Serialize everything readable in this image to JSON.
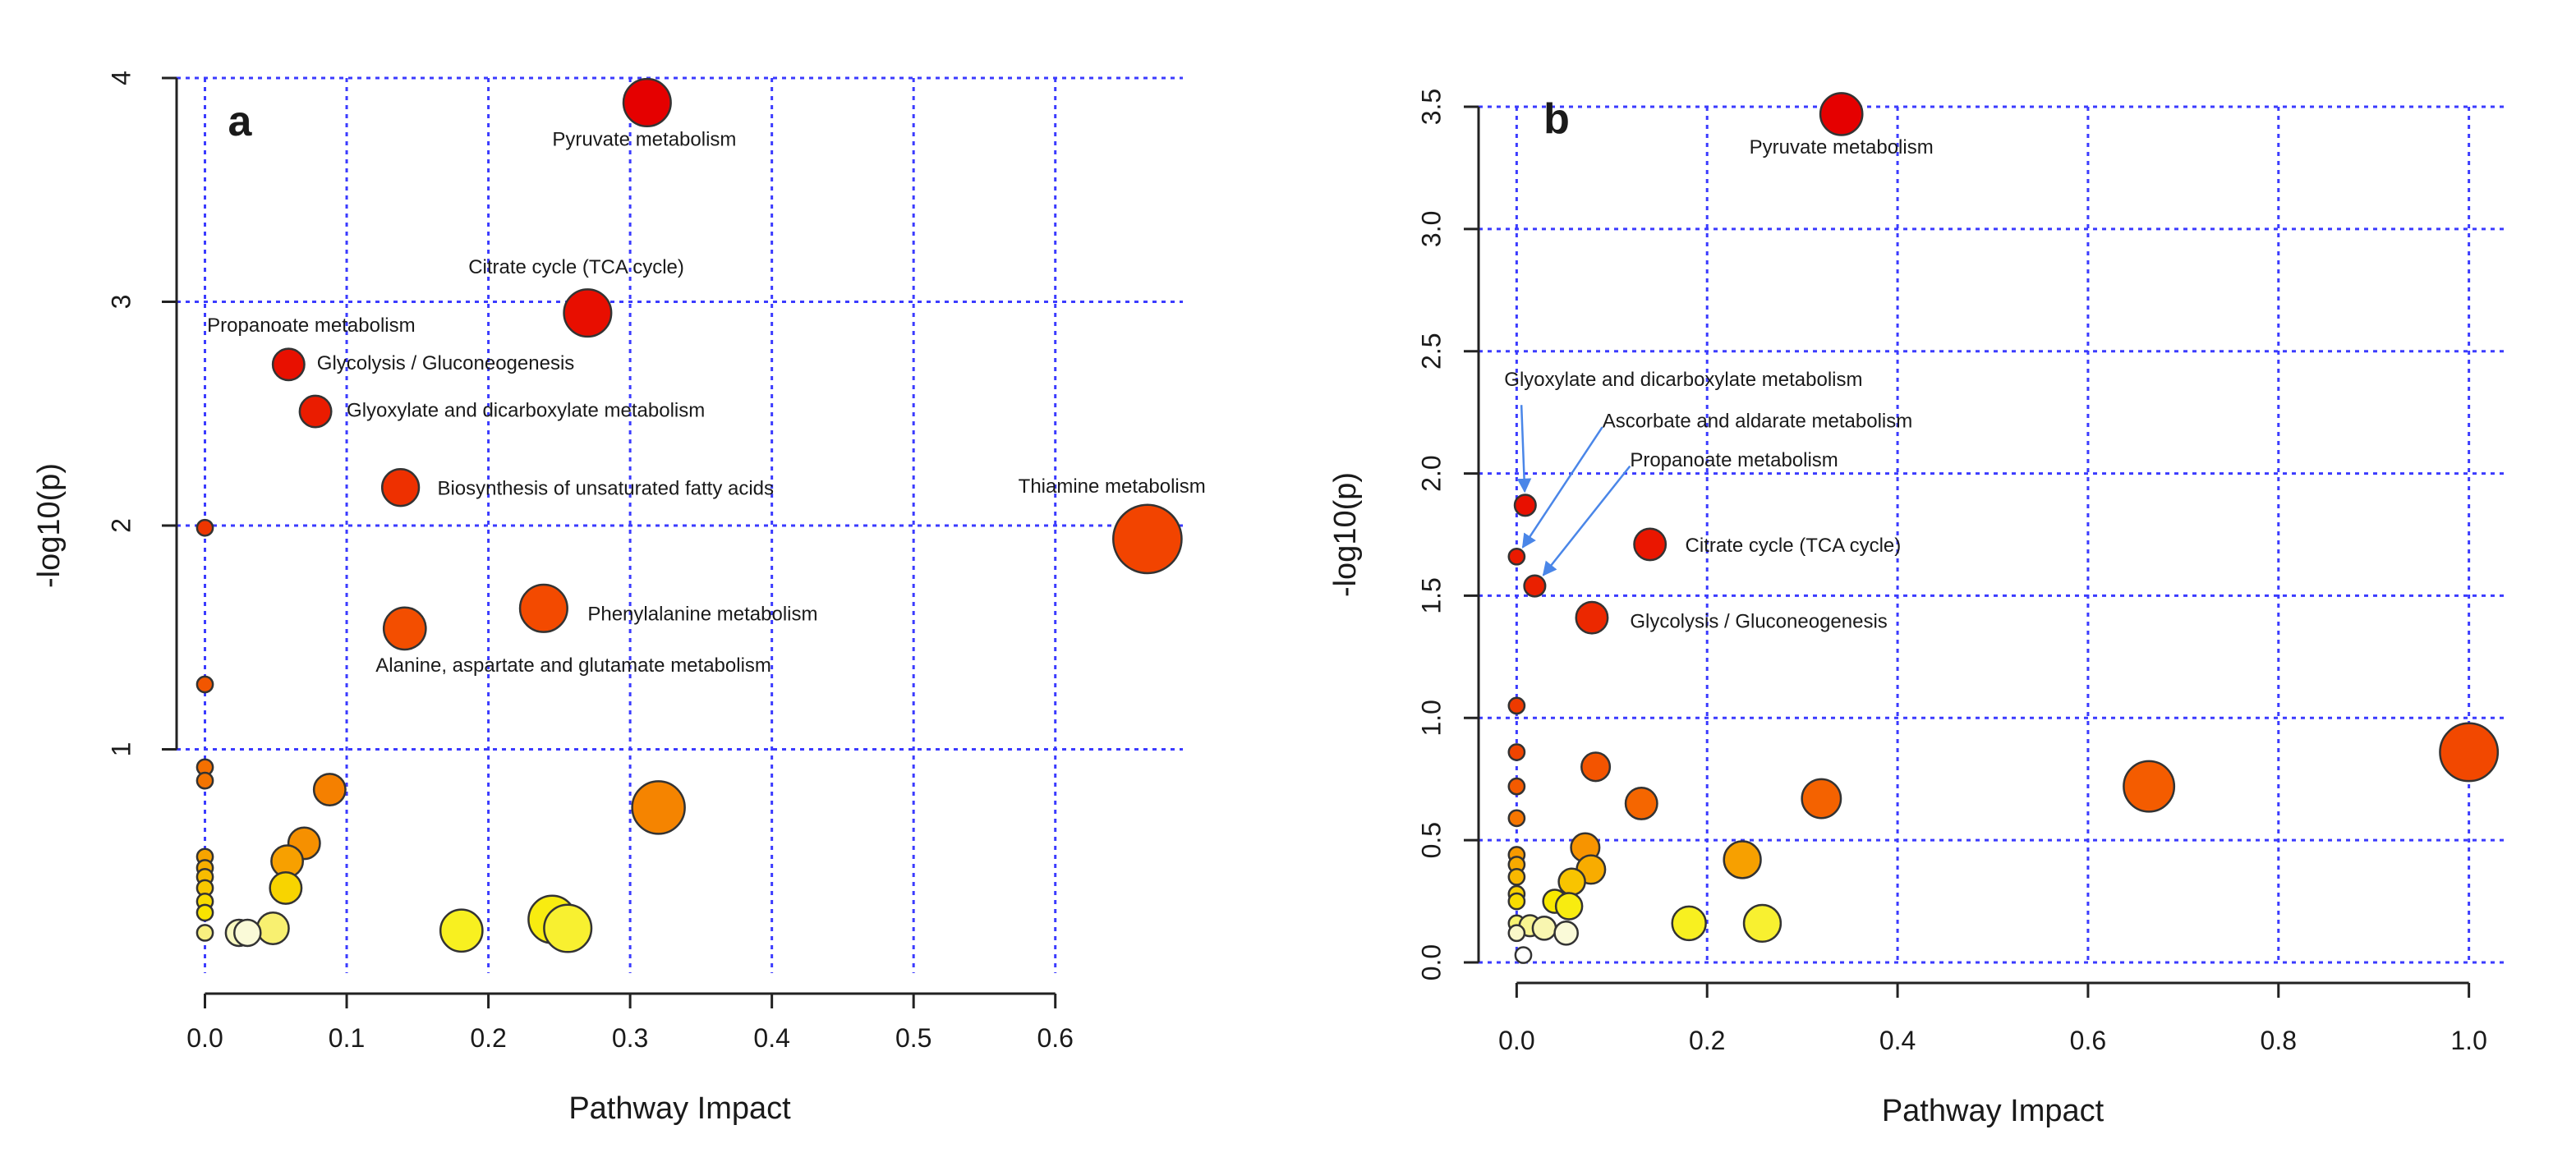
{
  "chart_data": [
    {
      "type": "scatter",
      "panel_label": "a",
      "xlabel": "Pathway Impact",
      "ylabel": "-log10(p)",
      "xlim": [
        -0.02,
        0.69
      ],
      "ylim": [
        0,
        4
      ],
      "x_ticks": [
        0.0,
        0.1,
        0.2,
        0.3,
        0.4,
        0.5,
        0.6
      ],
      "x_tick_labels": [
        "0.0",
        "0.1",
        "0.2",
        "0.3",
        "0.4",
        "0.5",
        "0.6"
      ],
      "y_ticks": [
        1,
        2,
        3,
        4
      ],
      "y_tick_labels": [
        "1",
        "2",
        "3",
        "4"
      ],
      "grid": true,
      "grid_color": "#3b3bff",
      "points": [
        {
          "x": 0.312,
          "y": 3.89,
          "size": 0.45,
          "color": "#e50000",
          "label": "Pyruvate  metabolism",
          "label_x": 0.31,
          "label_y": 3.72,
          "anchor": "middle"
        },
        {
          "x": 0.27,
          "y": 2.95,
          "size": 0.45,
          "color": "#e80e00",
          "label": "Citrate cycle (TCA  cycle)",
          "label_x": 0.262,
          "label_y": 3.15,
          "anchor": "middle"
        },
        {
          "x": 0.059,
          "y": 2.72,
          "size": 0.3,
          "color": "#e81000",
          "label": "Glycolysis / Gluconeogenesis",
          "label_x": 0.079,
          "label_y": 2.72,
          "anchor": "start"
        },
        {
          "x": 0.078,
          "y": 2.51,
          "size": 0.3,
          "color": "#ea1c00",
          "label": "Glyoxylate and dicarboxylate metabolism",
          "label_x": 0.1,
          "label_y": 2.51,
          "anchor": "start"
        },
        {
          "x": 0.138,
          "y": 2.17,
          "size": 0.35,
          "color": "#ee3000",
          "label": "Biosynthesis of unsaturated fatty acids",
          "label_x": 0.164,
          "label_y": 2.16,
          "anchor": "start"
        },
        {
          "x": 0.665,
          "y": 1.94,
          "size": 0.65,
          "color": "#f24400",
          "label": "Thiamine  metabolism",
          "label_x": 0.64,
          "label_y": 2.17,
          "anchor": "middle"
        },
        {
          "x": 0.239,
          "y": 1.63,
          "size": 0.45,
          "color": "#f34a00",
          "label": "Phenylalanine  metabolism",
          "label_x": 0.27,
          "label_y": 1.6,
          "anchor": "start"
        },
        {
          "x": 0.141,
          "y": 1.54,
          "size": 0.4,
          "color": "#f34e00",
          "label": "Alanine, aspartate and glutamate metabolism",
          "label_x": 0.26,
          "label_y": 1.37,
          "anchor": "middle"
        },
        {
          "x": 0.0,
          "y": 1.99,
          "size": 0.15,
          "color": "#ee3600",
          "label": "Propanoate  metabolism",
          "label_x": 0.075,
          "label_y": 2.89,
          "anchor": "middle"
        },
        {
          "x": 0.0,
          "y": 1.29,
          "size": 0.15,
          "color": "#f25600"
        },
        {
          "x": 0.0,
          "y": 0.92,
          "size": 0.15,
          "color": "#f47000"
        },
        {
          "x": 0.0,
          "y": 0.86,
          "size": 0.15,
          "color": "#f47400"
        },
        {
          "x": 0.088,
          "y": 0.82,
          "size": 0.3,
          "color": "#f58000"
        },
        {
          "x": 0.32,
          "y": 0.74,
          "size": 0.5,
          "color": "#f58400"
        },
        {
          "x": 0.07,
          "y": 0.58,
          "size": 0.3,
          "color": "#f69000"
        },
        {
          "x": 0.058,
          "y": 0.5,
          "size": 0.3,
          "color": "#f7a000"
        },
        {
          "x": 0.0,
          "y": 0.52,
          "size": 0.15,
          "color": "#f7a400"
        },
        {
          "x": 0.0,
          "y": 0.47,
          "size": 0.15,
          "color": "#f8b000"
        },
        {
          "x": 0.0,
          "y": 0.43,
          "size": 0.15,
          "color": "#f8bc00"
        },
        {
          "x": 0.0,
          "y": 0.38,
          "size": 0.15,
          "color": "#f8c800"
        },
        {
          "x": 0.057,
          "y": 0.38,
          "size": 0.3,
          "color": "#f8d400"
        },
        {
          "x": 0.0,
          "y": 0.32,
          "size": 0.15,
          "color": "#f8dc00"
        },
        {
          "x": 0.0,
          "y": 0.27,
          "size": 0.15,
          "color": "#f8e400"
        },
        {
          "x": 0.245,
          "y": 0.24,
          "size": 0.45,
          "color": "#f8ec10"
        },
        {
          "x": 0.181,
          "y": 0.19,
          "size": 0.4,
          "color": "#f8f020"
        },
        {
          "x": 0.256,
          "y": 0.2,
          "size": 0.45,
          "color": "#f8f030"
        },
        {
          "x": 0.048,
          "y": 0.2,
          "size": 0.3,
          "color": "#f8f070"
        },
        {
          "x": 0.0,
          "y": 0.18,
          "size": 0.15,
          "color": "#f8f080"
        },
        {
          "x": 0.024,
          "y": 0.18,
          "size": 0.25,
          "color": "#f8f8c0"
        },
        {
          "x": 0.03,
          "y": 0.18,
          "size": 0.25,
          "color": "#fafad8"
        }
      ]
    },
    {
      "type": "scatter",
      "panel_label": "b",
      "xlabel": "Pathway Impact",
      "ylabel": "-log10(p)",
      "xlim": [
        -0.04,
        1.04
      ],
      "ylim": [
        0,
        3.5
      ],
      "x_ticks": [
        0.0,
        0.2,
        0.4,
        0.6,
        0.8,
        1.0
      ],
      "x_tick_labels": [
        "0.0",
        "0.2",
        "0.4",
        "0.6",
        "0.8",
        "1.0"
      ],
      "y_ticks": [
        0.0,
        0.5,
        1.0,
        1.5,
        2.0,
        2.5,
        3.0,
        3.5
      ],
      "y_tick_labels": [
        "0.0",
        "0.5",
        "1.0",
        "1.5",
        "2.0",
        "2.5",
        "3.0",
        "3.5"
      ],
      "grid": true,
      "grid_color": "#3b3bff",
      "arrow_color": "#4a86e8",
      "points": [
        {
          "x": 0.341,
          "y": 3.47,
          "size": 0.4,
          "color": "#e50000",
          "label": "Pyruvate  metabolism",
          "label_x": 0.341,
          "label_y": 3.33,
          "anchor": "middle"
        },
        {
          "x": 0.009,
          "y": 1.87,
          "size": 0.2,
          "color": "#e81000",
          "label": "Glyoxylate and dicarboxylate metabolism",
          "label_x": -0.013,
          "label_y": 2.38,
          "anchor": "start",
          "arrow_from_x": 0.005,
          "arrow_from_y": 2.28
        },
        {
          "x": 0.0,
          "y": 1.66,
          "size": 0.15,
          "color": "#ea1a00",
          "label": "Ascorbate  and aldarate metabolism",
          "label_x": 0.09,
          "label_y": 2.21,
          "anchor": "start",
          "arrow_from_x": 0.09,
          "arrow_from_y": 2.19
        },
        {
          "x": 0.019,
          "y": 1.54,
          "size": 0.2,
          "color": "#ea2000",
          "label": "Propanoate  metabolism",
          "label_x": 0.119,
          "label_y": 2.05,
          "anchor": "start",
          "arrow_from_x": 0.119,
          "arrow_from_y": 2.03
        },
        {
          "x": 0.14,
          "y": 1.71,
          "size": 0.3,
          "color": "#ea1600",
          "label": "Citrate cycle (TCA  cycle)",
          "label_x": 0.177,
          "label_y": 1.7,
          "anchor": "start"
        },
        {
          "x": 0.079,
          "y": 1.41,
          "size": 0.3,
          "color": "#ec2800",
          "label": "Glycolysis / Gluconeogenesis",
          "label_x": 0.119,
          "label_y": 1.39,
          "anchor": "start"
        },
        {
          "x": 0.0,
          "y": 1.05,
          "size": 0.15,
          "color": "#ee3a00"
        },
        {
          "x": 0.0,
          "y": 0.86,
          "size": 0.15,
          "color": "#f04400"
        },
        {
          "x": 1.0,
          "y": 0.86,
          "size": 0.55,
          "color": "#f24800"
        },
        {
          "x": 0.083,
          "y": 0.8,
          "size": 0.27,
          "color": "#f35400"
        },
        {
          "x": 0.0,
          "y": 0.72,
          "size": 0.15,
          "color": "#f45a00"
        },
        {
          "x": 0.664,
          "y": 0.72,
          "size": 0.48,
          "color": "#f45c00"
        },
        {
          "x": 0.32,
          "y": 0.67,
          "size": 0.37,
          "color": "#f46200"
        },
        {
          "x": 0.131,
          "y": 0.65,
          "size": 0.3,
          "color": "#f56600"
        },
        {
          "x": 0.0,
          "y": 0.59,
          "size": 0.15,
          "color": "#f67600"
        },
        {
          "x": 0.072,
          "y": 0.47,
          "size": 0.27,
          "color": "#f79400"
        },
        {
          "x": 0.237,
          "y": 0.42,
          "size": 0.35,
          "color": "#f7a000"
        },
        {
          "x": 0.0,
          "y": 0.44,
          "size": 0.15,
          "color": "#f79a00"
        },
        {
          "x": 0.0,
          "y": 0.4,
          "size": 0.15,
          "color": "#f8aa00"
        },
        {
          "x": 0.078,
          "y": 0.38,
          "size": 0.27,
          "color": "#f8ac00"
        },
        {
          "x": 0.0,
          "y": 0.35,
          "size": 0.15,
          "color": "#f8b800"
        },
        {
          "x": 0.058,
          "y": 0.33,
          "size": 0.25,
          "color": "#f8c400"
        },
        {
          "x": 0.0,
          "y": 0.28,
          "size": 0.15,
          "color": "#f8d000"
        },
        {
          "x": 0.0,
          "y": 0.25,
          "size": 0.15,
          "color": "#f8dc00"
        },
        {
          "x": 0.04,
          "y": 0.25,
          "size": 0.22,
          "color": "#f8e800"
        },
        {
          "x": 0.055,
          "y": 0.23,
          "size": 0.25,
          "color": "#f8ec10"
        },
        {
          "x": 0.181,
          "y": 0.16,
          "size": 0.32,
          "color": "#f8f020"
        },
        {
          "x": 0.258,
          "y": 0.16,
          "size": 0.35,
          "color": "#f8f030"
        },
        {
          "x": 0.0,
          "y": 0.16,
          "size": 0.15,
          "color": "#f8f470"
        },
        {
          "x": 0.014,
          "y": 0.15,
          "size": 0.2,
          "color": "#f8f490"
        },
        {
          "x": 0.029,
          "y": 0.14,
          "size": 0.22,
          "color": "#f8f6b0"
        },
        {
          "x": 0.0,
          "y": 0.12,
          "size": 0.15,
          "color": "#faf8c8"
        },
        {
          "x": 0.052,
          "y": 0.12,
          "size": 0.22,
          "color": "#fafad8"
        },
        {
          "x": 0.007,
          "y": 0.03,
          "size": 0.15,
          "color": "#ffffff"
        }
      ]
    }
  ]
}
